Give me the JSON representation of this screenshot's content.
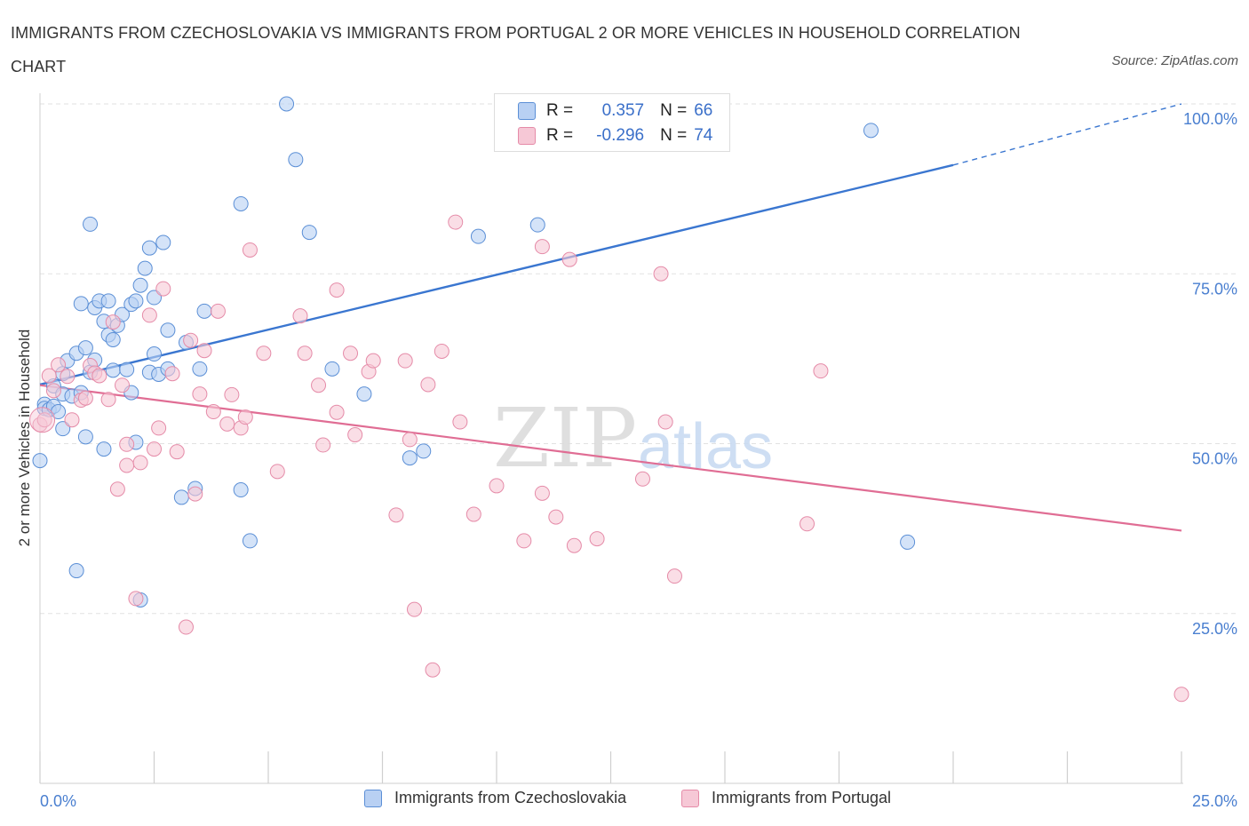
{
  "title": "IMMIGRANTS FROM CZECHOSLOVAKIA VS IMMIGRANTS FROM PORTUGAL 2 OR MORE VEHICLES IN HOUSEHOLD CORRELATION CHART",
  "source": "Source: ZipAtlas.com",
  "legend_stats": [
    {
      "r_label": "R =",
      "r_value": "0.357",
      "n_label": "N =",
      "n_value": "66"
    },
    {
      "r_label": "R =",
      "r_value": "-0.296",
      "n_label": "N =",
      "n_value": "74"
    }
  ],
  "colors": {
    "blue_fill": "#b8d0f3",
    "blue_stroke": "#5b8fd6",
    "blue_line": "#3a76d0",
    "pink_fill": "#f6c8d6",
    "pink_stroke": "#e58ba8",
    "pink_line": "#e06d94",
    "axis_text": "#4a7fd0",
    "grid": "#e2e2e2"
  },
  "chart_data": {
    "type": "scatter",
    "title": "IMMIGRANTS FROM CZECHOSLOVAKIA VS IMMIGRANTS FROM PORTUGAL 2 OR MORE VEHICLES IN HOUSEHOLD CORRELATION CHART",
    "xlabel": "",
    "ylabel": "2 or more Vehicles in Household",
    "xlim": [
      0,
      25
    ],
    "ylim": [
      0,
      100
    ],
    "x_tick_labels": [
      "0.0%",
      "25.0%"
    ],
    "y_tick_labels": [
      "100.0%",
      "75.0%",
      "50.0%",
      "25.0%"
    ],
    "y_ticks": [
      100,
      75,
      50,
      25
    ],
    "grid": true,
    "legend_position": "top-center",
    "series": [
      {
        "name": "Immigrants from Czechoslovakia",
        "color": "#5b8fd6",
        "trend": {
          "x": [
            0,
            20
          ],
          "y": [
            58.7,
            91.0
          ],
          "dashed_extension": {
            "x": [
              20,
              25
            ],
            "y": [
              91.0,
              100.0
            ]
          }
        },
        "points": [
          [
            0.0,
            47.5
          ],
          [
            0.1,
            55.8
          ],
          [
            0.1,
            55.2
          ],
          [
            0.2,
            55.0
          ],
          [
            0.3,
            55.5
          ],
          [
            0.3,
            58.5
          ],
          [
            0.4,
            54.7
          ],
          [
            0.5,
            60.3
          ],
          [
            0.5,
            57.3
          ],
          [
            0.5,
            52.2
          ],
          [
            0.6,
            62.2
          ],
          [
            0.7,
            57.0
          ],
          [
            0.8,
            31.3
          ],
          [
            0.8,
            63.3
          ],
          [
            0.9,
            70.6
          ],
          [
            0.9,
            57.5
          ],
          [
            1.0,
            64.1
          ],
          [
            1.0,
            51.0
          ],
          [
            1.1,
            82.3
          ],
          [
            1.1,
            60.5
          ],
          [
            1.2,
            62.3
          ],
          [
            1.2,
            70.0
          ],
          [
            1.3,
            71.0
          ],
          [
            1.4,
            68.0
          ],
          [
            1.4,
            49.2
          ],
          [
            1.5,
            66.0
          ],
          [
            1.5,
            71.0
          ],
          [
            1.6,
            65.3
          ],
          [
            1.6,
            60.8
          ],
          [
            1.7,
            67.4
          ],
          [
            1.8,
            69.0
          ],
          [
            1.9,
            60.9
          ],
          [
            2.0,
            70.5
          ],
          [
            2.0,
            57.5
          ],
          [
            2.1,
            71.0
          ],
          [
            2.1,
            50.2
          ],
          [
            2.2,
            73.3
          ],
          [
            2.2,
            27.0
          ],
          [
            2.3,
            75.8
          ],
          [
            2.4,
            78.8
          ],
          [
            2.4,
            60.5
          ],
          [
            2.5,
            63.2
          ],
          [
            2.5,
            71.5
          ],
          [
            2.6,
            60.2
          ],
          [
            2.7,
            79.6
          ],
          [
            2.8,
            66.7
          ],
          [
            2.8,
            61.0
          ],
          [
            3.1,
            42.1
          ],
          [
            3.2,
            64.9
          ],
          [
            3.4,
            43.4
          ],
          [
            3.5,
            61.0
          ],
          [
            3.6,
            69.5
          ],
          [
            4.4,
            85.3
          ],
          [
            4.4,
            43.2
          ],
          [
            4.6,
            35.7
          ],
          [
            5.4,
            100.0
          ],
          [
            5.6,
            91.8
          ],
          [
            5.9,
            81.1
          ],
          [
            6.4,
            61.0
          ],
          [
            7.1,
            57.3
          ],
          [
            8.1,
            47.9
          ],
          [
            8.4,
            48.9
          ],
          [
            9.6,
            80.5
          ],
          [
            10.9,
            82.2
          ],
          [
            18.2,
            96.1
          ],
          [
            19.0,
            35.5
          ]
        ]
      },
      {
        "name": "Immigrants from Portugal",
        "color": "#e58ba8",
        "trend": {
          "x": [
            0,
            25
          ],
          "y": [
            58.6,
            37.2
          ]
        },
        "points": [
          [
            0.0,
            52.8
          ],
          [
            0.1,
            53.5
          ],
          [
            0.2,
            60.0
          ],
          [
            0.3,
            57.8
          ],
          [
            0.4,
            61.6
          ],
          [
            0.6,
            59.9
          ],
          [
            0.7,
            53.5
          ],
          [
            0.9,
            56.4
          ],
          [
            1.0,
            56.7
          ],
          [
            1.1,
            61.5
          ],
          [
            1.2,
            60.4
          ],
          [
            1.3,
            60.0
          ],
          [
            1.5,
            56.5
          ],
          [
            1.6,
            67.9
          ],
          [
            1.7,
            43.3
          ],
          [
            1.8,
            58.6
          ],
          [
            1.9,
            46.8
          ],
          [
            1.9,
            49.9
          ],
          [
            2.1,
            27.2
          ],
          [
            2.2,
            47.2
          ],
          [
            2.4,
            68.9
          ],
          [
            2.5,
            49.2
          ],
          [
            2.6,
            52.3
          ],
          [
            2.7,
            72.8
          ],
          [
            2.9,
            60.3
          ],
          [
            3.0,
            48.8
          ],
          [
            3.2,
            23.0
          ],
          [
            3.3,
            65.2
          ],
          [
            3.4,
            42.6
          ],
          [
            3.5,
            57.3
          ],
          [
            3.6,
            63.7
          ],
          [
            3.8,
            54.7
          ],
          [
            3.9,
            69.5
          ],
          [
            4.1,
            52.9
          ],
          [
            4.2,
            57.2
          ],
          [
            4.4,
            52.3
          ],
          [
            4.5,
            53.9
          ],
          [
            4.6,
            78.5
          ],
          [
            4.9,
            63.3
          ],
          [
            5.2,
            45.9
          ],
          [
            5.7,
            68.8
          ],
          [
            5.8,
            63.3
          ],
          [
            6.1,
            58.6
          ],
          [
            6.2,
            49.8
          ],
          [
            6.5,
            72.6
          ],
          [
            6.5,
            54.6
          ],
          [
            6.8,
            63.3
          ],
          [
            6.9,
            51.3
          ],
          [
            7.2,
            60.6
          ],
          [
            7.3,
            62.2
          ],
          [
            7.8,
            39.5
          ],
          [
            8.0,
            62.2
          ],
          [
            8.1,
            50.6
          ],
          [
            8.2,
            25.6
          ],
          [
            8.5,
            58.7
          ],
          [
            8.6,
            16.7
          ],
          [
            8.8,
            63.6
          ],
          [
            9.1,
            82.6
          ],
          [
            9.2,
            53.2
          ],
          [
            9.5,
            39.6
          ],
          [
            10.0,
            43.8
          ],
          [
            10.6,
            35.7
          ],
          [
            11.0,
            79.0
          ],
          [
            11.0,
            42.7
          ],
          [
            11.3,
            39.2
          ],
          [
            11.6,
            77.1
          ],
          [
            11.7,
            35.0
          ],
          [
            12.2,
            36.0
          ],
          [
            13.2,
            44.8
          ],
          [
            13.6,
            75.0
          ],
          [
            13.7,
            53.2
          ],
          [
            13.9,
            30.5
          ],
          [
            16.8,
            38.2
          ],
          [
            17.1,
            60.7
          ],
          [
            25.0,
            13.1
          ]
        ]
      }
    ]
  },
  "bottom_legend": [
    "Immigrants from Czechoslovakia",
    "Immigrants from Portugal"
  ],
  "watermark": {
    "zip": "ZIP",
    "atlas": "atlas"
  }
}
